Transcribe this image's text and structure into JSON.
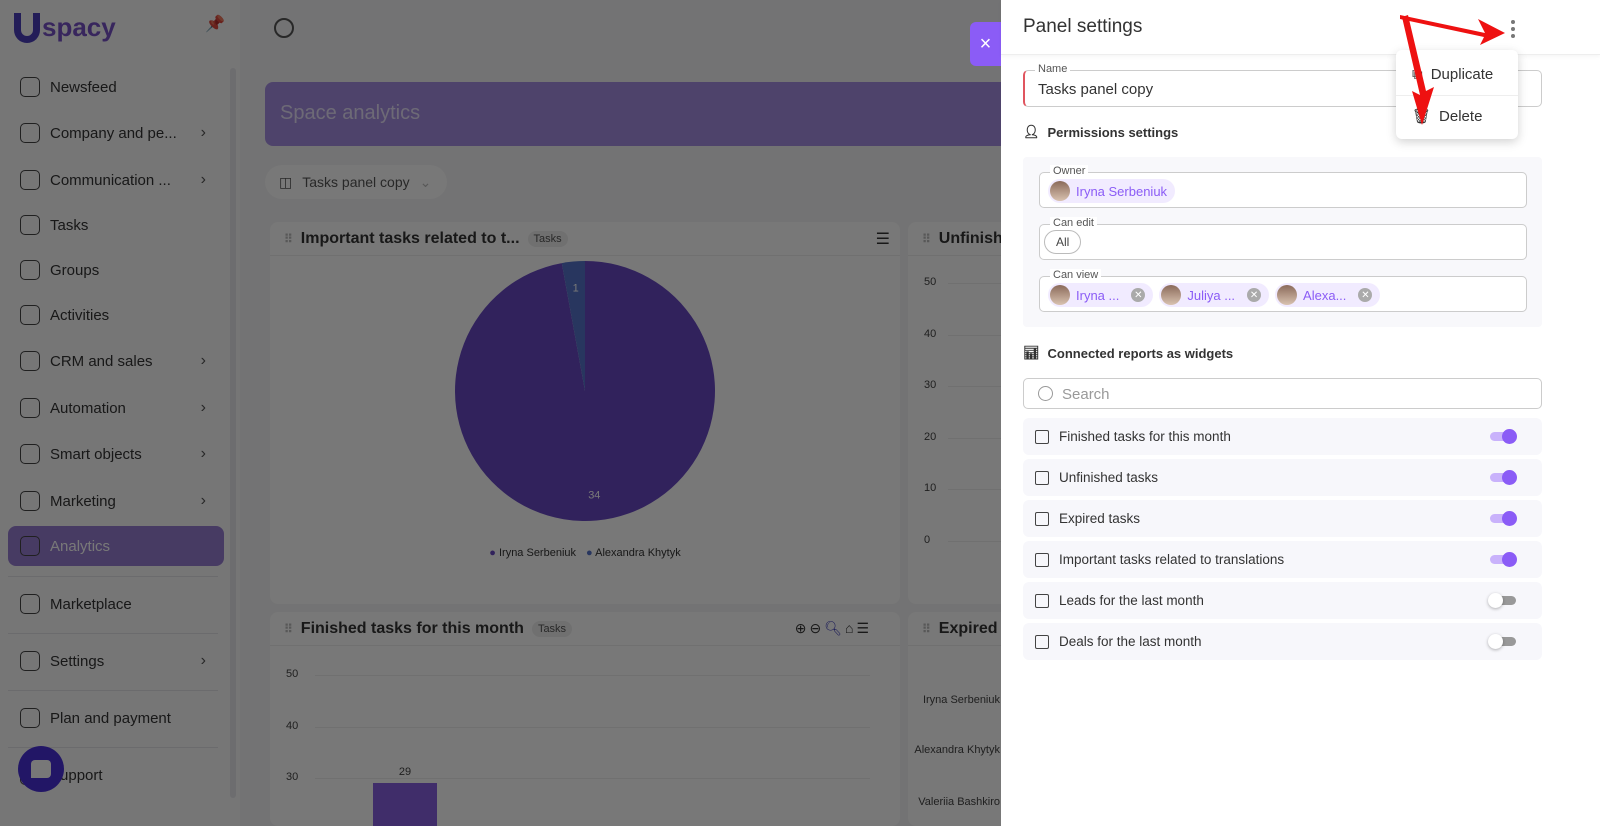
{
  "app": {
    "logo_text": "spacy",
    "search_icon": "search-icon"
  },
  "sidebar": {
    "items": [
      {
        "label": "Newsfeed",
        "icon": "home-icon",
        "chevron": false
      },
      {
        "label": "Company and pe...",
        "icon": "building-icon",
        "chevron": true
      },
      {
        "label": "Communication ...",
        "icon": "chat-icon",
        "chevron": true
      },
      {
        "label": "Tasks",
        "icon": "check-circle-icon",
        "chevron": false
      },
      {
        "label": "Groups",
        "icon": "users-icon",
        "chevron": false
      },
      {
        "label": "Activities",
        "icon": "calendar-icon",
        "chevron": false
      },
      {
        "label": "CRM and sales",
        "icon": "bag-icon",
        "chevron": true
      },
      {
        "label": "Automation",
        "icon": "bolt-icon",
        "chevron": true
      },
      {
        "label": "Smart objects",
        "icon": "scan-icon",
        "chevron": true
      },
      {
        "label": "Marketing",
        "icon": "megaphone-icon",
        "chevron": true
      },
      {
        "label": "Analytics",
        "icon": "chart-icon",
        "chevron": false,
        "active": true
      },
      {
        "label": "Marketplace",
        "icon": "store-icon",
        "chevron": false
      },
      {
        "label": "Settings",
        "icon": "gear-icon",
        "chevron": true
      },
      {
        "label": "Plan and payment",
        "icon": "wallet-icon",
        "chevron": false
      },
      {
        "label": "Support",
        "icon": "support-icon",
        "chevron": false
      }
    ]
  },
  "main": {
    "banner_title": "Space analytics",
    "panel_select": "Tasks panel copy",
    "widgets": [
      {
        "title": "Important tasks related to t...",
        "tag": "Tasks"
      },
      {
        "title": "Unfinish"
      },
      {
        "title": "Finished tasks for this month",
        "tag": "Tasks"
      },
      {
        "title": "Expired"
      }
    ]
  },
  "chart_data": [
    {
      "type": "pie",
      "title": "Important tasks related to t...",
      "series": [
        {
          "name": "Iryna Serbeniuk",
          "value": 34,
          "color": "#6b46d6"
        },
        {
          "name": "Alexandra Khytyk",
          "value": 1,
          "color": "#4f74d9"
        }
      ],
      "legend": "bottom"
    },
    {
      "type": "bar",
      "title": "Unfinish",
      "yticks": [
        "50",
        "40",
        "30",
        "20",
        "10",
        "0"
      ],
      "ylim": [
        0,
        50
      ]
    },
    {
      "type": "bar",
      "title": "Finished tasks for this month",
      "yticks": [
        "50",
        "40",
        "30"
      ],
      "values": [
        29
      ],
      "ylim": [
        0,
        50
      ],
      "color": "#8b5cf6"
    },
    {
      "type": "bar",
      "orientation": "horizontal",
      "title": "Expired",
      "categories": [
        "Iryna Serbeniuk",
        "Alexandra Khytyk",
        "Valeriia Bashkiro"
      ]
    }
  ],
  "drawer": {
    "title": "Panel settings",
    "close_label": "×",
    "menu": [
      {
        "label": "Duplicate",
        "icon": "copy-icon"
      },
      {
        "label": "Delete",
        "icon": "trash-icon"
      }
    ],
    "name_label": "Name",
    "name_value": "Tasks panel copy",
    "permissions_title": "Permissions settings",
    "owner_label": "Owner",
    "owner": "Iryna Serbeniuk",
    "can_edit_label": "Can edit",
    "can_edit": "All",
    "can_view_label": "Can view",
    "can_view": [
      "Iryna ...",
      "Juliya ...",
      "Alexa..."
    ],
    "reports_title": "Connected reports as widgets",
    "search_placeholder": "Search",
    "reports": [
      {
        "label": "Finished tasks for this month",
        "icon": "bar-chart-icon",
        "enabled": true
      },
      {
        "label": "Unfinished tasks",
        "icon": "bar-chart-icon",
        "enabled": true
      },
      {
        "label": "Expired tasks",
        "icon": "horizontal-bar-chart-icon",
        "enabled": true
      },
      {
        "label": "Important tasks related to translations",
        "icon": "pie-chart-icon",
        "enabled": true
      },
      {
        "label": "Leads for the last month",
        "icon": "bar-chart-icon",
        "enabled": false
      },
      {
        "label": "Deals for the last month",
        "icon": "bar-chart-icon",
        "enabled": false
      }
    ],
    "accent": "#8b5cf6"
  }
}
